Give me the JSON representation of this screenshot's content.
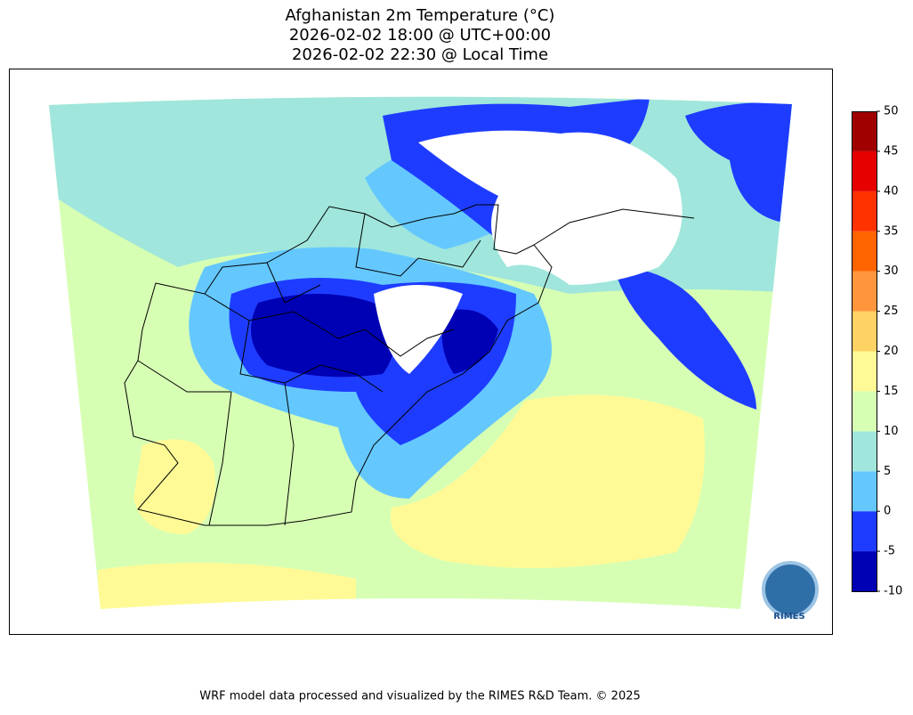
{
  "title": [
    "Afghanistan 2m Temperature (°C)",
    "2026-02-02 18:00 @ UTC+00:00",
    "2026-02-02 22:30 @ Local Time"
  ],
  "colorbar": {
    "lim": [
      -10,
      50
    ],
    "ticks": [
      -10,
      -5,
      0,
      5,
      10,
      15,
      20,
      25,
      30,
      35,
      40,
      45,
      50
    ],
    "colors": [
      "#0000b4",
      "#1e3cff",
      "#64c8ff",
      "#a0e6dc",
      "#d7ffb4",
      "#fffa96",
      "#ffd264",
      "#ff963c",
      "#ff6400",
      "#ff3200",
      "#e60000",
      "#a00000"
    ]
  },
  "logo": "RIMES",
  "footer": "WRF model data processed and visualized by the RIMES R&D Team. © 2025"
}
